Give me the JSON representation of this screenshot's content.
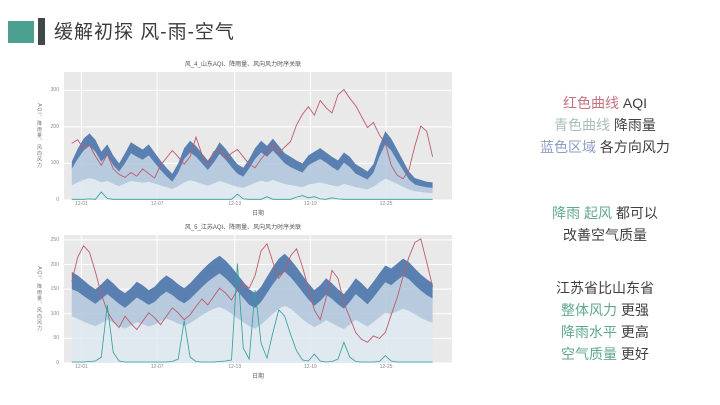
{
  "slide": {
    "title": "缓解初探 风-雨-空气",
    "accent_square_color": "#4BA08F",
    "accent_bar_color": "#3E4849"
  },
  "colors": {
    "note_red": "#C4737E",
    "note_cyan": "#A9BFB6",
    "note_blue": "#8C9CC6",
    "note_green": "#5FA88B",
    "note_dark": "#3F3F3F"
  },
  "chart_style": {
    "plot_bg": "#E9E9E9",
    "grid": "#FFFFFF",
    "tick_color": "#888888"
  },
  "notes": [
    {
      "lines": [
        {
          "parts": [
            {
              "t": "红色曲线",
              "c": "red"
            },
            {
              "t": " AQI",
              "c": "dark"
            }
          ]
        },
        {
          "parts": [
            {
              "t": "青色曲线",
              "c": "cyan"
            },
            {
              "t": " 降雨量",
              "c": "dark"
            }
          ]
        },
        {
          "parts": [
            {
              "t": "蓝色区域",
              "c": "blue"
            },
            {
              "t": " 各方向风力",
              "c": "dark"
            }
          ]
        }
      ]
    },
    {
      "lines": [
        {
          "parts": [
            {
              "t": "降雨",
              "c": "green"
            },
            {
              "t": " ",
              "c": "dark"
            },
            {
              "t": "起风",
              "c": "green"
            },
            {
              "t": " 都可以",
              "c": "dark"
            }
          ]
        },
        {
          "parts": [
            {
              "t": "改善空气质量",
              "c": "dark"
            }
          ]
        }
      ]
    },
    {
      "lines": [
        {
          "parts": [
            {
              "t": "江苏省比山东省",
              "c": "dark"
            }
          ]
        },
        {
          "parts": [
            {
              "t": "整体风力",
              "c": "green"
            },
            {
              "t": " 更强",
              "c": "dark"
            }
          ]
        },
        {
          "parts": [
            {
              "t": "降雨水平",
              "c": "green"
            },
            {
              "t": " 更高",
              "c": "dark"
            }
          ]
        },
        {
          "parts": [
            {
              "t": "空气质量",
              "c": "green"
            },
            {
              "t": " 更好",
              "c": "dark"
            }
          ]
        }
      ]
    }
  ],
  "chart_data": [
    {
      "type": "area",
      "title": "风_4_山东AQI、降雨量、风向风力时序关联",
      "xlabel": "日期",
      "ylabel": "AQI、降雨量、风向风力",
      "ylim": [
        0,
        350
      ],
      "yticks": [
        0,
        100,
        200,
        300
      ],
      "xticks": {
        "labels": [
          "12-01",
          "12-07",
          "12-13",
          "12-19",
          "12-25"
        ],
        "positions": [
          0.045,
          0.24,
          0.44,
          0.635,
          0.83
        ]
      },
      "series": {
        "aqi": {
          "label": "AQI",
          "color": "#BF5B6B",
          "values": [
            155,
            165,
            140,
            150,
            120,
            95,
            125,
            85,
            70,
            62,
            75,
            65,
            85,
            72,
            60,
            95,
            115,
            135,
            118,
            98,
            118,
            172,
            125,
            100,
            132,
            142,
            112,
            128,
            138,
            118,
            98,
            88,
            112,
            132,
            150,
            128,
            145,
            160,
            205,
            235,
            255,
            232,
            272,
            252,
            238,
            288,
            302,
            278,
            258,
            228,
            198,
            212,
            178,
            155,
            95,
            68,
            58,
            82,
            148,
            202,
            188,
            118
          ]
        },
        "rain": {
          "label": "降雨量",
          "color": "#2F9E99",
          "values": [
            2,
            2,
            2,
            3,
            2,
            22,
            4,
            2,
            2,
            2,
            2,
            2,
            2,
            2,
            2,
            2,
            2,
            2,
            2,
            2,
            2,
            2,
            2,
            2,
            2,
            2,
            2,
            2,
            16,
            3,
            2,
            2,
            2,
            9,
            2,
            2,
            2,
            2,
            8,
            12,
            6,
            9,
            3,
            2,
            6,
            3,
            2,
            2,
            2,
            2,
            2,
            2,
            2,
            2,
            2,
            2,
            2,
            2,
            2,
            2,
            2,
            2
          ]
        },
        "wind": {
          "label": "各方向风力",
          "colors": [
            "#DDE7F1",
            "#AFC4DC",
            "#4D76AD"
          ],
          "stack_tops": [
            [
              40,
              48,
              55,
              60,
              56,
              48,
              52,
              44,
              38,
              45,
              52,
              50,
              47,
              50,
              45,
              40,
              35,
              30,
              38,
              48,
              54,
              50,
              44,
              39,
              45,
              52,
              47,
              41,
              36,
              33,
              40,
              47,
              53,
              49,
              55,
              49,
              44,
              41,
              38,
              35,
              42,
              45,
              48,
              44,
              40,
              37,
              44,
              40,
              35,
              32,
              29,
              36,
              48,
              58,
              52,
              44,
              36,
              29,
              24,
              22,
              20,
              19
            ],
            [
              85,
              112,
              135,
              148,
              132,
              105,
              122,
              95,
              78,
              100,
              128,
              118,
              110,
              122,
              102,
              82,
              65,
              50,
              75,
              112,
              130,
              118,
              100,
              82,
              102,
              126,
              110,
              90,
              72,
              64,
              86,
              112,
              130,
              118,
              135,
              118,
              100,
              90,
              82,
              75,
              95,
              104,
              112,
              102,
              90,
              80,
              102,
              90,
              72,
              64,
              56,
              74,
              118,
              152,
              135,
              108,
              82,
              56,
              42,
              38,
              35,
              33
            ],
            [
              105,
              140,
              168,
              182,
              165,
              132,
              152,
              122,
              100,
              128,
              158,
              148,
              138,
              152,
              130,
              108,
              88,
              72,
              100,
              142,
              162,
              148,
              128,
              108,
              130,
              158,
              140,
              118,
              98,
              88,
              112,
              142,
              162,
              148,
              168,
              148,
              128,
              118,
              108,
              100,
              122,
              132,
              142,
              130,
              118,
              108,
              130,
              118,
              98,
              88,
              78,
              98,
              148,
              188,
              168,
              138,
              108,
              78,
              60,
              55,
              50,
              48
            ]
          ]
        }
      }
    },
    {
      "type": "area",
      "title": "风_5_江苏AQI、降雨量、风向风力时序关联",
      "xlabel": "日期",
      "ylabel": "AQI、降雨量、风向风力",
      "ylim": [
        0,
        260
      ],
      "yticks": [
        0,
        50,
        100,
        150,
        200,
        250
      ],
      "xticks": {
        "labels": [
          "12-01",
          "12-07",
          "12-13",
          "12-19",
          "12-25"
        ],
        "positions": [
          0.045,
          0.24,
          0.44,
          0.635,
          0.83
        ]
      },
      "series": {
        "aqi": {
          "label": "AQI",
          "color": "#BF5B6B",
          "values": [
            165,
            215,
            238,
            225,
            185,
            140,
            105,
            85,
            72,
            95,
            80,
            68,
            85,
            102,
            92,
            78,
            95,
            112,
            102,
            88,
            98,
            115,
            130,
            118,
            135,
            152,
            142,
            128,
            148,
            162,
            152,
            178,
            228,
            242,
            205,
            172,
            188,
            218,
            232,
            195,
            152,
            108,
            88,
            132,
            188,
            172,
            122,
            92,
            62,
            48,
            42,
            55,
            50,
            62,
            98,
            132,
            175,
            215,
            245,
            252,
            205,
            155
          ]
        },
        "rain": {
          "label": "降雨量",
          "color": "#2F9E99",
          "values": [
            2,
            2,
            2,
            3,
            4,
            12,
            118,
            22,
            4,
            2,
            2,
            2,
            2,
            2,
            2,
            2,
            2,
            3,
            8,
            86,
            12,
            3,
            2,
            2,
            2,
            3,
            4,
            6,
            202,
            30,
            8,
            148,
            40,
            10,
            62,
            108,
            95,
            58,
            25,
            6,
            4,
            18,
            4,
            2,
            3,
            8,
            42,
            12,
            3,
            2,
            2,
            2,
            3,
            15,
            4,
            2,
            2,
            2,
            2,
            2,
            2,
            2
          ]
        },
        "wind": {
          "label": "各方向风力",
          "colors": [
            "#DDE7F1",
            "#AFC4DC",
            "#4D76AD"
          ],
          "stack_tops": [
            [
              95,
              90,
              84,
              79,
              75,
              81,
              88,
              82,
              75,
              70,
              76,
              83,
              79,
              74,
              78,
              85,
              90,
              86,
              80,
              76,
              81,
              89,
              97,
              104,
              110,
              114,
              108,
              100,
              91,
              83,
              75,
              70,
              78,
              89,
              100,
              110,
              116,
              110,
              100,
              89,
              80,
              73,
              79,
              87,
              81,
              74,
              69,
              78,
              88,
              81,
              74,
              83,
              93,
              102,
              99,
              105,
              110,
              106,
              99,
              92,
              86,
              82
            ],
            [
              150,
              145,
              136,
              128,
              120,
              130,
              140,
              130,
              120,
              112,
              122,
              133,
              126,
              118,
              124,
              136,
              145,
              138,
              128,
              121,
              130,
              142,
              154,
              165,
              174,
              182,
              172,
              160,
              146,
              132,
              118,
              112,
              124,
              142,
              160,
              176,
              185,
              174,
              160,
              144,
              129,
              116,
              126,
              139,
              130,
              119,
              110,
              124,
              140,
              130,
              119,
              133,
              149,
              164,
              158,
              168,
              177,
              170,
              158,
              147,
              138,
              131
            ],
            [
              185,
              178,
              168,
              158,
              150,
              160,
              172,
              162,
              150,
              142,
              152,
              165,
              158,
              148,
              155,
              168,
              178,
              170,
              160,
              152,
              162,
              175,
              188,
              200,
              210,
              218,
              208,
              195,
              180,
              165,
              150,
              142,
              155,
              175,
              195,
              212,
              222,
              210,
              195,
              178,
              162,
              148,
              158,
              172,
              162,
              150,
              140,
              155,
              172,
              162,
              150,
              165,
              182,
              198,
              192,
              202,
              212,
              205,
              192,
              180,
              170,
              162
            ]
          ]
        }
      }
    }
  ]
}
